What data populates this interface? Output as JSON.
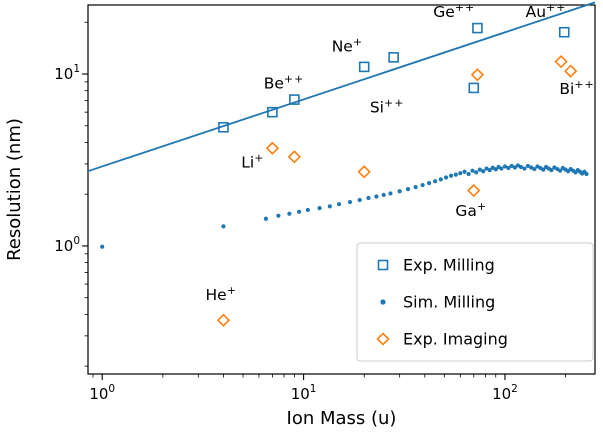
{
  "chart_data": {
    "type": "scatter",
    "title": "",
    "xlabel": "Ion Mass (u)",
    "ylabel": "Resolution (nm)",
    "x_scale": "log",
    "y_scale": "log",
    "xlim": [
      0.85,
      280
    ],
    "ylim": [
      0.18,
      25.2
    ],
    "x_ticks": [
      1,
      10,
      100
    ],
    "y_ticks": [
      1,
      10
    ],
    "grid": false,
    "colors": {
      "blue": "#1f77b4",
      "orange": "#ff7f0e",
      "frame": "#000000",
      "legend_edge": "#cccccc"
    },
    "legend": {
      "position": "lower right",
      "entries": [
        "Exp. Milling",
        "Sim. Milling",
        "Exp. Imaging"
      ]
    },
    "fit_line": {
      "description": "power-law trend line",
      "color": "#1f77b4",
      "coeff": 2.9,
      "exponent": 0.39,
      "x_start": 0.85,
      "x_end": 280
    },
    "series": [
      {
        "name": "Exp. Milling",
        "marker": "square",
        "color": "#1f77b4",
        "filled": false,
        "points": [
          [
            4,
            4.9
          ],
          [
            7,
            6.0
          ],
          [
            9,
            7.1
          ],
          [
            20,
            11.0
          ],
          [
            28,
            12.5
          ],
          [
            70,
            8.3
          ],
          [
            73,
            18.5
          ],
          [
            197,
            17.5
          ]
        ]
      },
      {
        "name": "Sim. Milling",
        "marker": "dot",
        "color": "#1f77b4",
        "filled": true,
        "points": [
          [
            1,
            0.99
          ],
          [
            4,
            1.3
          ],
          [
            6.5,
            1.44
          ],
          [
            7.5,
            1.5
          ],
          [
            8.5,
            1.54
          ],
          [
            9.5,
            1.58
          ],
          [
            10.5,
            1.62
          ],
          [
            12,
            1.66
          ],
          [
            13.5,
            1.7
          ],
          [
            15,
            1.75
          ],
          [
            17,
            1.8
          ],
          [
            19,
            1.85
          ],
          [
            21,
            1.9
          ],
          [
            23,
            1.94
          ],
          [
            25,
            1.98
          ],
          [
            27,
            2.02
          ],
          [
            30,
            2.08
          ],
          [
            33,
            2.14
          ],
          [
            36,
            2.2
          ],
          [
            39,
            2.26
          ],
          [
            42,
            2.32
          ],
          [
            45,
            2.38
          ],
          [
            48,
            2.44
          ],
          [
            51,
            2.5
          ],
          [
            54,
            2.56
          ],
          [
            57,
            2.6
          ],
          [
            60,
            2.65
          ],
          [
            63,
            2.7
          ],
          [
            66,
            2.62
          ],
          [
            69,
            2.74
          ],
          [
            72,
            2.68
          ],
          [
            75,
            2.78
          ],
          [
            78,
            2.72
          ],
          [
            81,
            2.82
          ],
          [
            84,
            2.76
          ],
          [
            87,
            2.85
          ],
          [
            90,
            2.79
          ],
          [
            93,
            2.88
          ],
          [
            96,
            2.82
          ],
          [
            100,
            2.9
          ],
          [
            104,
            2.84
          ],
          [
            108,
            2.92
          ],
          [
            112,
            2.86
          ],
          [
            116,
            2.94
          ],
          [
            120,
            2.88
          ],
          [
            125,
            2.82
          ],
          [
            130,
            2.92
          ],
          [
            135,
            2.86
          ],
          [
            140,
            2.8
          ],
          [
            145,
            2.9
          ],
          [
            150,
            2.84
          ],
          [
            155,
            2.78
          ],
          [
            160,
            2.88
          ],
          [
            165,
            2.82
          ],
          [
            170,
            2.76
          ],
          [
            176,
            2.86
          ],
          [
            182,
            2.8
          ],
          [
            188,
            2.74
          ],
          [
            194,
            2.84
          ],
          [
            200,
            2.78
          ],
          [
            206,
            2.72
          ],
          [
            212,
            2.8
          ],
          [
            218,
            2.74
          ],
          [
            224,
            2.68
          ],
          [
            230,
            2.76
          ],
          [
            236,
            2.7
          ],
          [
            242,
            2.64
          ],
          [
            248,
            2.7
          ],
          [
            254,
            2.62
          ]
        ]
      },
      {
        "name": "Exp. Imaging",
        "marker": "diamond",
        "color": "#ff7f0e",
        "filled": false,
        "points": [
          [
            4,
            0.37
          ],
          [
            7,
            3.7
          ],
          [
            9,
            3.3
          ],
          [
            20,
            2.7
          ],
          [
            70,
            2.1
          ],
          [
            73,
            9.9
          ],
          [
            190,
            11.8
          ],
          [
            212,
            10.4
          ]
        ]
      }
    ],
    "annotations": [
      {
        "text": "He",
        "charge": "+",
        "x": 3.9,
        "y": 0.52
      },
      {
        "text": "Li",
        "charge": "+",
        "x": 5.6,
        "y": 3.05
      },
      {
        "text": "Be",
        "charge": "++",
        "x": 8.0,
        "y": 8.8
      },
      {
        "text": "Ne",
        "charge": "+",
        "x": 16.5,
        "y": 14.5
      },
      {
        "text": "Si",
        "charge": "++",
        "x": 26,
        "y": 6.4
      },
      {
        "text": "Ga",
        "charge": "+",
        "x": 68,
        "y": 1.6
      },
      {
        "text": "Ge",
        "charge": "++",
        "x": 56,
        "y": 23.0
      },
      {
        "text": "Au",
        "charge": "++",
        "x": 160,
        "y": 23.0
      },
      {
        "text": "Bi",
        "charge": "++",
        "x": 228,
        "y": 8.2
      }
    ]
  }
}
